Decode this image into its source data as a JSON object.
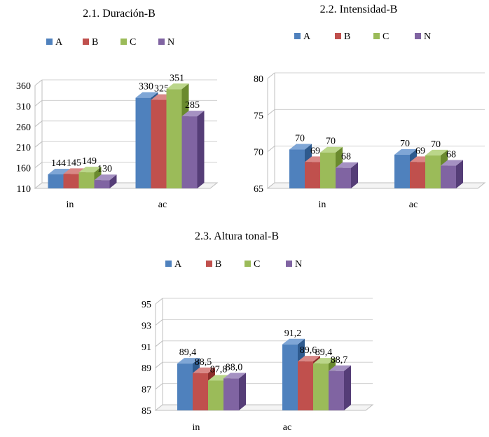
{
  "chart_data": [
    {
      "type": "bar",
      "title": "2.1. Duración-B",
      "categories": [
        "in",
        "ac"
      ],
      "series": [
        {
          "name": "A",
          "values": [
            144,
            330
          ]
        },
        {
          "name": "B",
          "values": [
            145,
            325
          ]
        },
        {
          "name": "C",
          "values": [
            149,
            351
          ]
        },
        {
          "name": "N",
          "values": [
            130,
            285
          ]
        }
      ],
      "data_labels": [
        [
          "144",
          "330"
        ],
        [
          "145",
          "325"
        ],
        [
          "149",
          "351"
        ],
        [
          "130",
          "285"
        ]
      ],
      "ylim": [
        110,
        360
      ],
      "yticks": [
        "110",
        "160",
        "210",
        "260",
        "310",
        "360"
      ],
      "xlabel": "",
      "ylabel": "",
      "grid": true,
      "legend_position": "top"
    },
    {
      "type": "bar",
      "title": "2.2. Intensidad-B",
      "categories": [
        "in",
        "ac"
      ],
      "series": [
        {
          "name": "A",
          "values": [
            70.3,
            69.6
          ]
        },
        {
          "name": "B",
          "values": [
            68.6,
            68.6
          ]
        },
        {
          "name": "C",
          "values": [
            69.9,
            69.5
          ]
        },
        {
          "name": "N",
          "values": [
            67.8,
            68.1
          ]
        }
      ],
      "data_labels": [
        [
          "70",
          "70"
        ],
        [
          "69",
          "69"
        ],
        [
          "70",
          "70"
        ],
        [
          "68",
          "68"
        ]
      ],
      "ylim": [
        65,
        80
      ],
      "yticks": [
        "65",
        "70",
        "75",
        "80"
      ],
      "xlabel": "",
      "ylabel": "",
      "grid": true,
      "legend_position": "top"
    },
    {
      "type": "bar",
      "title": "2.3. Altura tonal-B",
      "categories": [
        "in",
        "ac"
      ],
      "series": [
        {
          "name": "A",
          "values": [
            89.4,
            91.2
          ]
        },
        {
          "name": "B",
          "values": [
            88.5,
            89.6
          ]
        },
        {
          "name": "C",
          "values": [
            87.8,
            89.4
          ]
        },
        {
          "name": "N",
          "values": [
            88.0,
            88.7
          ]
        }
      ],
      "data_labels": [
        [
          "89,4",
          "91,2"
        ],
        [
          "88,5",
          "89,6"
        ],
        [
          "87,8",
          "89,4"
        ],
        [
          "88,0",
          "88,7"
        ]
      ],
      "ylim": [
        85,
        95
      ],
      "yticks": [
        "85",
        "87",
        "89",
        "91",
        "93",
        "95"
      ],
      "xlabel": "",
      "ylabel": "",
      "grid": true,
      "legend_position": "top"
    }
  ],
  "colors": {
    "A": {
      "front": "#4F81BD",
      "side": "#2E5A8E",
      "top": "#7FA6D6"
    },
    "B": {
      "front": "#C0504D",
      "side": "#8C2E2B",
      "top": "#D98886"
    },
    "C": {
      "front": "#9BBB59",
      "side": "#6A8A2E",
      "top": "#BBD68A"
    },
    "N": {
      "front": "#8064A2",
      "side": "#553D77",
      "top": "#A591C2"
    }
  }
}
